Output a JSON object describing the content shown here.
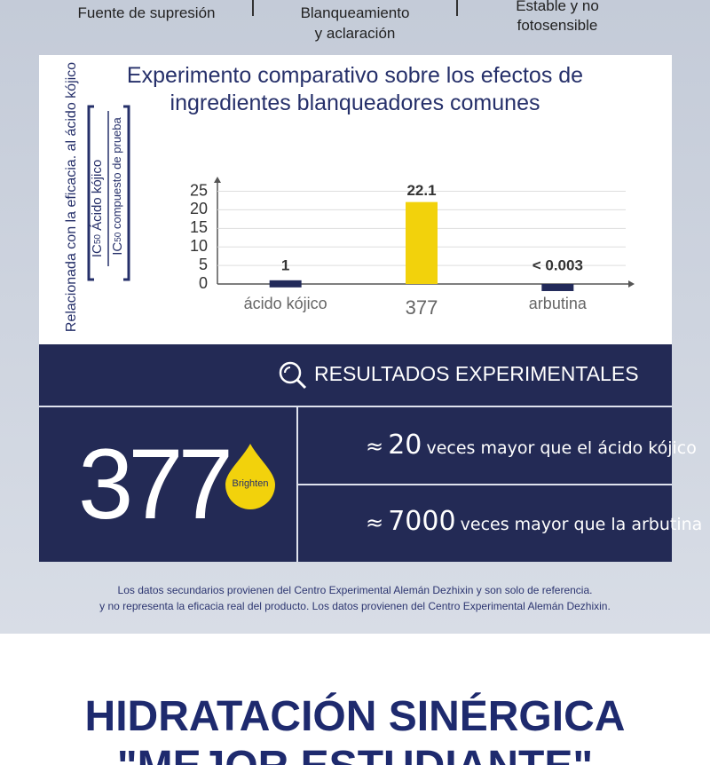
{
  "header": {
    "items": [
      [
        "Fuente de supresión"
      ],
      [
        "Blanqueamiento",
        "y aclaración"
      ],
      [
        "Estable y no",
        "fotosensible"
      ]
    ]
  },
  "chart_data": {
    "type": "bar",
    "title": "Experimento comparativo sobre los efectos de ingredientes blanqueadores comunes",
    "ylabel": "Relacionada con la eficacia. al ácido kójico",
    "ylabel_fraction": {
      "ic": "IC",
      "ic_subscript": "50",
      "numerator": "Ácido kójico",
      "denominator": "compuesto de prueba"
    },
    "categories": [
      "ácido kójico",
      "377",
      "arbutina"
    ],
    "values": [
      1,
      22.1,
      0.003
    ],
    "value_labels": [
      "1",
      "22.1",
      "< 0.003"
    ],
    "colors": [
      "#222a5a",
      "#f2d20c",
      "#222a5a"
    ],
    "ylim": [
      0,
      28
    ],
    "yticks": [
      0,
      5,
      10,
      15,
      20,
      25
    ],
    "grid": true
  },
  "results": {
    "title": "RESULTADOS EXPERIMENTALES",
    "number": 377,
    "badge": "Brighten",
    "rows": [
      {
        "symbol": "≈",
        "value": 20,
        "text": "veces mayor que el ácido kójico"
      },
      {
        "symbol": "≈",
        "value": 7000,
        "text": "veces mayor que la arbutina"
      }
    ]
  },
  "footnote": [
    "Los datos secundarios provienen del Centro Experimental Alemán Dezhixin y son solo de referencia.",
    "y no representa la eficacia real del producto. Los datos provienen del Centro Experimental Alemán Dezhixin."
  ],
  "section": {
    "title": [
      "HIDRATACIÓN SINÉRGICA",
      "\"MEJOR ESTUDIANTE\""
    ]
  }
}
